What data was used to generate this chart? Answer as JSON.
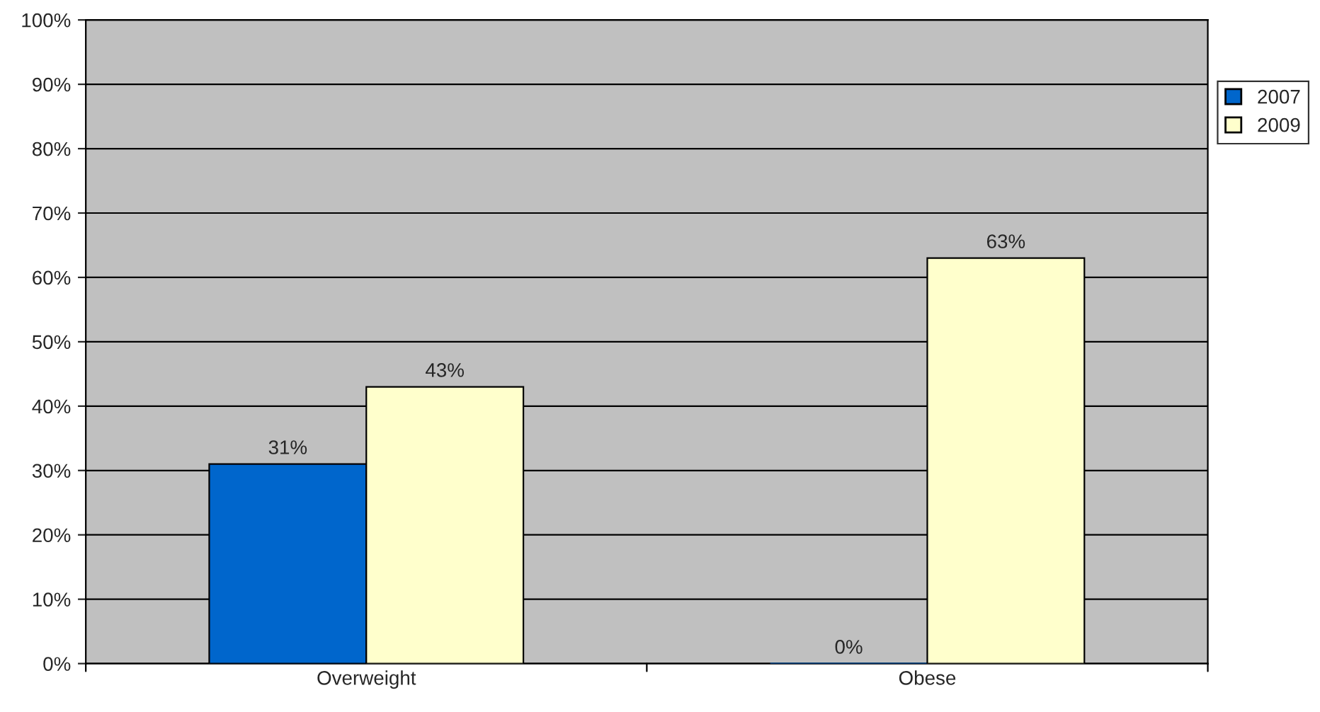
{
  "chart_data": {
    "type": "bar",
    "categories": [
      "Overweight",
      "Obese"
    ],
    "series": [
      {
        "name": "2007",
        "color": "#0066cc",
        "values": [
          31,
          0
        ],
        "value_labels": [
          "31%",
          "0%"
        ]
      },
      {
        "name": "2009",
        "color": "#ffffcc",
        "values": [
          43,
          63
        ],
        "value_labels": [
          "43%",
          "63%"
        ]
      }
    ],
    "ylim": [
      0,
      100
    ],
    "yticks": [
      {
        "value": 0,
        "label": "0%"
      },
      {
        "value": 10,
        "label": "10%"
      },
      {
        "value": 20,
        "label": "20%"
      },
      {
        "value": 30,
        "label": "30%"
      },
      {
        "value": 40,
        "label": "40%"
      },
      {
        "value": 50,
        "label": "50%"
      },
      {
        "value": 60,
        "label": "60%"
      },
      {
        "value": 70,
        "label": "70%"
      },
      {
        "value": 80,
        "label": "80%"
      },
      {
        "value": 90,
        "label": "90%"
      },
      {
        "value": 100,
        "label": "100%"
      }
    ],
    "grid": "y",
    "legend": "top right"
  }
}
